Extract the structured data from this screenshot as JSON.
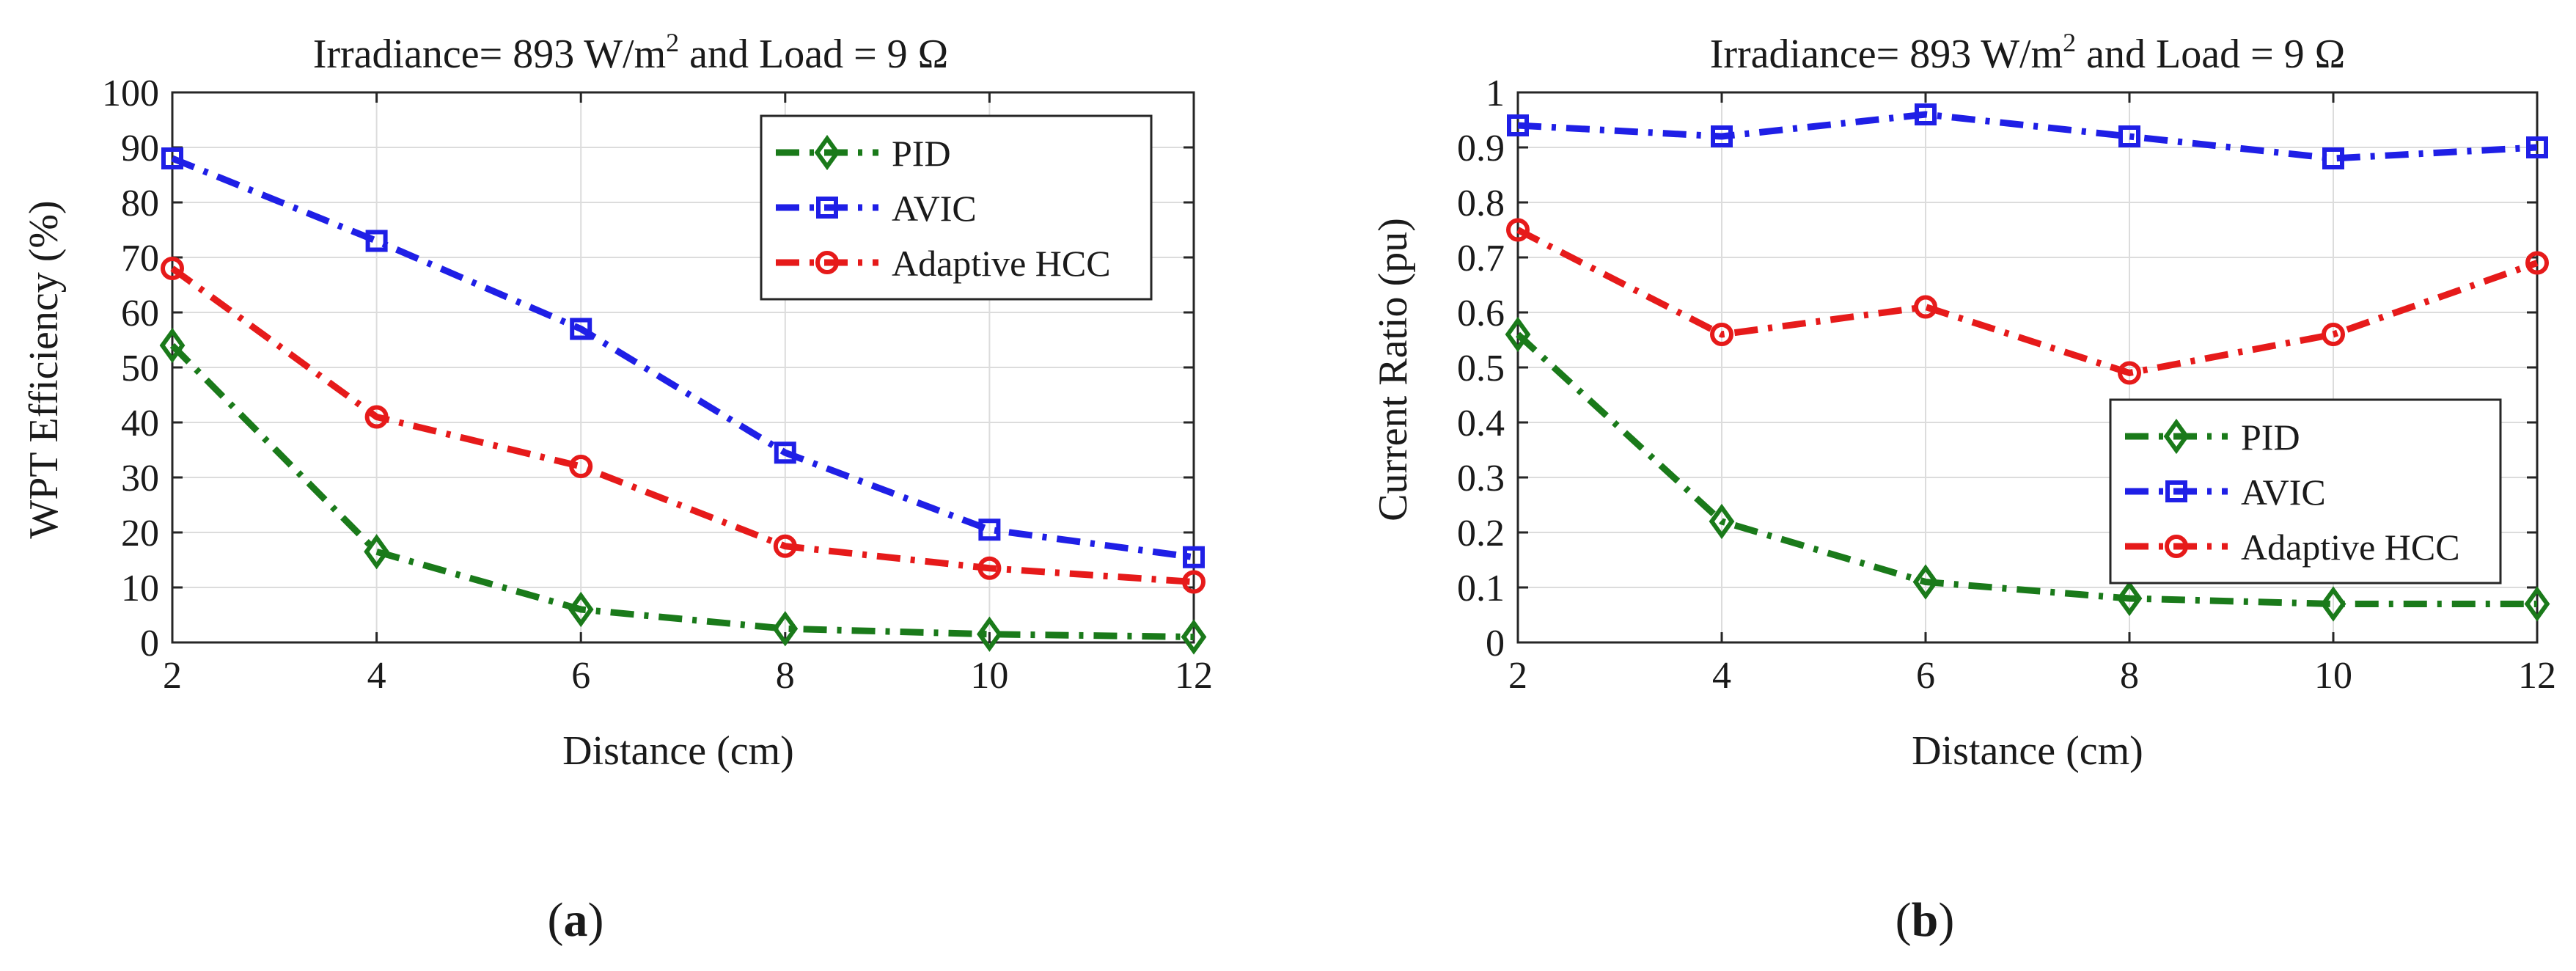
{
  "chart_data": [
    {
      "type": "line",
      "panel_label": "a",
      "title": "Irradiance= 893 W/m",
      "title_sup": "2",
      "title_tail": " and Load = 9 Ω",
      "xlabel": "Distance (cm)",
      "ylabel": "WPT Efficiency (%)",
      "x": [
        2,
        4,
        6,
        8,
        10,
        12
      ],
      "xlim": [
        2,
        12
      ],
      "ylim": [
        0,
        100
      ],
      "xticks": [
        2,
        4,
        6,
        8,
        10,
        12
      ],
      "yticks": [
        0,
        10,
        20,
        30,
        40,
        50,
        60,
        70,
        80,
        90,
        100
      ],
      "grid": true,
      "legend_position": "top-right",
      "series": [
        {
          "name": "PID",
          "color": "#1a7a1a",
          "marker": "diamond",
          "values": [
            54,
            16.5,
            6,
            2.5,
            1.5,
            1
          ]
        },
        {
          "name": "AVIC",
          "color": "#1f1fe6",
          "marker": "square",
          "values": [
            88,
            73,
            57,
            34.5,
            20.5,
            15.5
          ]
        },
        {
          "name": "Adaptive HCC",
          "color": "#e61a1a",
          "marker": "circle",
          "values": [
            68,
            41,
            32,
            17.5,
            13.5,
            11
          ]
        }
      ]
    },
    {
      "type": "line",
      "panel_label": "b",
      "title": "Irradiance= 893 W/m",
      "title_sup": "2",
      "title_tail": " and Load = 9 Ω",
      "xlabel": "Distance (cm)",
      "ylabel": "Current Ratio (pu)",
      "x": [
        2,
        4,
        6,
        8,
        10,
        12
      ],
      "xlim": [
        2,
        12
      ],
      "ylim": [
        0,
        1
      ],
      "xticks": [
        2,
        4,
        6,
        8,
        10,
        12
      ],
      "yticks": [
        0,
        0.1,
        0.2,
        0.3,
        0.4,
        0.5,
        0.6,
        0.7,
        0.8,
        0.9,
        1
      ],
      "grid": true,
      "legend_position": "center-right",
      "series": [
        {
          "name": "PID",
          "color": "#1a7a1a",
          "marker": "diamond",
          "values": [
            0.56,
            0.22,
            0.11,
            0.08,
            0.07,
            0.07
          ]
        },
        {
          "name": "AVIC",
          "color": "#1f1fe6",
          "marker": "square",
          "values": [
            0.94,
            0.92,
            0.96,
            0.92,
            0.88,
            0.9
          ]
        },
        {
          "name": "Adaptive HCC",
          "color": "#e61a1a",
          "marker": "circle",
          "values": [
            0.75,
            0.56,
            0.61,
            0.49,
            0.56,
            0.69
          ]
        }
      ]
    }
  ]
}
